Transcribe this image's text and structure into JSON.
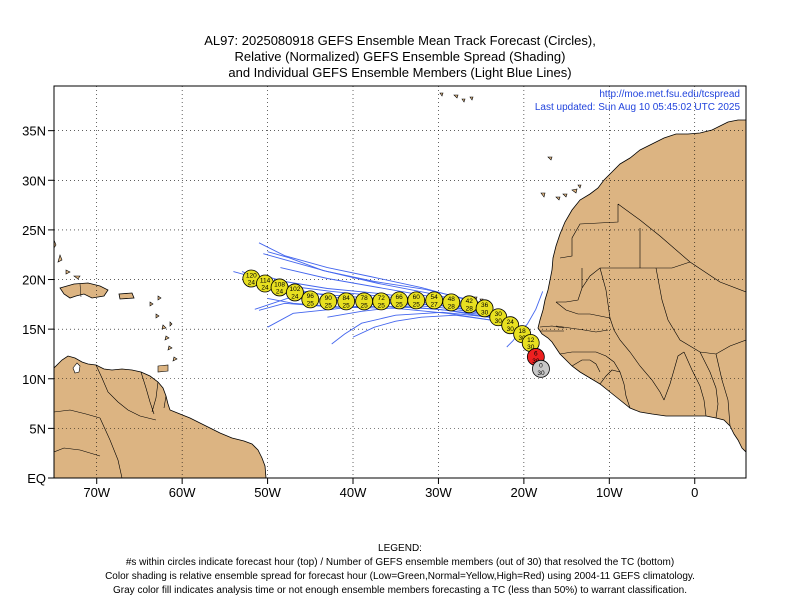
{
  "title": {
    "line1": "AL97: 2025080918 GEFS Ensemble Mean Track Forecast (Circles),",
    "line2": "Relative (Normalized) GEFS Ensemble Spread (Shading)",
    "line3": "and Individual GEFS Ensemble Members (Light Blue Lines)"
  },
  "info": {
    "url": "http://moe.met.fsu.edu/tcspread",
    "updated": "Last updated: Sun Aug 10 05:45:02 UTC 2025"
  },
  "legend": {
    "heading": "LEGEND:",
    "line1": "#s within circles indicate forecast hour (top) / Number of GEFS ensemble members (out of 30) that resolved the TC (bottom)",
    "line2": "Color shading is relative ensemble spread for forecast hour (Low=Green,Normal=Yellow,High=Red) using 2004-11 GEFS climatology.",
    "line3": "Gray color fill indicates analysis time or not enough ensemble members forecasting a TC (less than 50%) to warrant classification."
  },
  "colors": {
    "land": "#dcb482",
    "ocean": "#ffffff",
    "member_track": "#4466ee",
    "mean_normal": "#e8e020",
    "mean_high": "#ee2020",
    "analysis_gray": "#c8c8c8",
    "info_text": "#2244dd"
  },
  "chart_data": {
    "type": "scatter",
    "title": "AL97: 2025080918 GEFS Ensemble Mean Track Forecast (Circles), Relative (Normalized) GEFS Ensemble Spread (Shading) and Individual GEFS Ensemble Members (Light Blue Lines)",
    "xlim": [
      -75,
      6
    ],
    "ylim": [
      0,
      39.5
    ],
    "x_ticks": [
      {
        "value": -70,
        "label": "70W"
      },
      {
        "value": -60,
        "label": "60W"
      },
      {
        "value": -50,
        "label": "50W"
      },
      {
        "value": -40,
        "label": "40W"
      },
      {
        "value": -30,
        "label": "30W"
      },
      {
        "value": -20,
        "label": "20W"
      },
      {
        "value": -10,
        "label": "10W"
      },
      {
        "value": 0,
        "label": "0"
      }
    ],
    "y_ticks": [
      {
        "value": 0,
        "label": "EQ"
      },
      {
        "value": 5,
        "label": "5N"
      },
      {
        "value": 10,
        "label": "10N"
      },
      {
        "value": 15,
        "label": "15N"
      },
      {
        "value": 20,
        "label": "20N"
      },
      {
        "value": 25,
        "label": "25N"
      },
      {
        "value": 30,
        "label": "30N"
      },
      {
        "value": 35,
        "label": "35N"
      }
    ],
    "grid": true,
    "mean_track": [
      {
        "hour": 0,
        "members": 30,
        "lon": -18.0,
        "lat": 11.0,
        "spread": "analysis"
      },
      {
        "hour": 6,
        "members": 30,
        "lon": -18.6,
        "lat": 12.2,
        "spread": "high"
      },
      {
        "hour": 12,
        "members": 30,
        "lon": -19.2,
        "lat": 13.6,
        "spread": "normal"
      },
      {
        "hour": 18,
        "members": 30,
        "lon": -20.2,
        "lat": 14.5,
        "spread": "normal"
      },
      {
        "hour": 24,
        "members": 30,
        "lon": -21.6,
        "lat": 15.4,
        "spread": "normal"
      },
      {
        "hour": 30,
        "members": 30,
        "lon": -23.0,
        "lat": 16.2,
        "spread": "normal"
      },
      {
        "hour": 36,
        "members": 30,
        "lon": -24.6,
        "lat": 17.1,
        "spread": "normal"
      },
      {
        "hour": 42,
        "members": 28,
        "lon": -26.4,
        "lat": 17.5,
        "spread": "normal"
      },
      {
        "hour": 48,
        "members": 28,
        "lon": -28.5,
        "lat": 17.7,
        "spread": "normal"
      },
      {
        "hour": 54,
        "members": 27,
        "lon": -30.5,
        "lat": 17.9,
        "spread": "normal"
      },
      {
        "hour": 60,
        "members": 25,
        "lon": -32.6,
        "lat": 17.9,
        "spread": "normal"
      },
      {
        "hour": 66,
        "members": 25,
        "lon": -34.6,
        "lat": 17.9,
        "spread": "normal"
      },
      {
        "hour": 72,
        "members": 25,
        "lon": -36.7,
        "lat": 17.8,
        "spread": "normal"
      },
      {
        "hour": 78,
        "members": 25,
        "lon": -38.7,
        "lat": 17.8,
        "spread": "normal"
      },
      {
        "hour": 84,
        "members": 25,
        "lon": -40.8,
        "lat": 17.8,
        "spread": "normal"
      },
      {
        "hour": 90,
        "members": 25,
        "lon": -42.9,
        "lat": 17.8,
        "spread": "normal"
      },
      {
        "hour": 96,
        "members": 25,
        "lon": -45.0,
        "lat": 18.0,
        "spread": "normal"
      },
      {
        "hour": 102,
        "members": 24,
        "lon": -46.8,
        "lat": 18.7,
        "spread": "normal"
      },
      {
        "hour": 108,
        "members": 24,
        "lon": -48.6,
        "lat": 19.2,
        "spread": "normal"
      },
      {
        "hour": 114,
        "members": 24,
        "lon": -50.3,
        "lat": 19.6,
        "spread": "normal"
      },
      {
        "hour": 120,
        "members": 24,
        "lon": -51.9,
        "lat": 20.1,
        "spread": "normal"
      }
    ],
    "member_tracks": [
      [
        [
          -18.5,
          12.0
        ],
        [
          -20.5,
          14.8
        ],
        [
          -24,
          16.5
        ],
        [
          -30,
          17.2
        ],
        [
          -36,
          17.6
        ],
        [
          -42,
          18.2
        ],
        [
          -48,
          19.2
        ],
        [
          -53,
          20.8
        ]
      ],
      [
        [
          -18.5,
          12.0
        ],
        [
          -21,
          15.2
        ],
        [
          -25,
          17.2
        ],
        [
          -31,
          18.3
        ],
        [
          -37,
          19.2
        ],
        [
          -43,
          20.1
        ],
        [
          -48.5,
          21.2
        ]
      ],
      [
        [
          -18.5,
          12.0
        ],
        [
          -20,
          14.2
        ],
        [
          -23,
          15.8
        ],
        [
          -29,
          16.6
        ],
        [
          -35,
          17.1
        ],
        [
          -41,
          17.2
        ],
        [
          -47,
          17.6
        ],
        [
          -50,
          18.1
        ]
      ],
      [
        [
          -18.5,
          12.0
        ],
        [
          -21.5,
          15.5
        ],
        [
          -26,
          17.8
        ],
        [
          -32,
          19.2
        ],
        [
          -38,
          20.3
        ],
        [
          -43,
          21.2
        ],
        [
          -48,
          22.4
        ],
        [
          -51,
          23.7
        ]
      ],
      [
        [
          -18.5,
          12.0
        ],
        [
          -20.8,
          15.0
        ],
        [
          -24.5,
          16.8
        ],
        [
          -30,
          17.6
        ],
        [
          -36,
          18.0
        ],
        [
          -42,
          18.4
        ],
        [
          -48,
          18.9
        ],
        [
          -52,
          19.6
        ]
      ],
      [
        [
          -18.5,
          12.0
        ],
        [
          -20.2,
          14.5
        ],
        [
          -23.5,
          16.1
        ],
        [
          -29,
          16.9
        ],
        [
          -34,
          17.3
        ],
        [
          -39,
          16.8
        ],
        [
          -43,
          16.2
        ]
      ],
      [
        [
          -18.5,
          12.0
        ],
        [
          -20.5,
          14.6
        ],
        [
          -24,
          16.2
        ],
        [
          -29.5,
          16.7
        ],
        [
          -35,
          16.4
        ],
        [
          -39,
          15.6
        ],
        [
          -41,
          14.5
        ],
        [
          -42.5,
          13.5
        ]
      ],
      [
        [
          -18.5,
          12.0
        ],
        [
          -21,
          15.0
        ],
        [
          -25,
          17.0
        ],
        [
          -31,
          17.9
        ],
        [
          -37,
          18.6
        ],
        [
          -43,
          19.1
        ],
        [
          -48,
          19.8
        ],
        [
          -50.5,
          20.4
        ]
      ],
      [
        [
          -18.5,
          12.0
        ],
        [
          -20.7,
          14.9
        ],
        [
          -24.2,
          16.6
        ],
        [
          -30,
          17.4
        ],
        [
          -36,
          17.7
        ],
        [
          -42,
          17.9
        ],
        [
          -47,
          18.3
        ],
        [
          -51.5,
          17.0
        ]
      ],
      [
        [
          -18.5,
          12.0
        ],
        [
          -21.2,
          15.3
        ],
        [
          -25.5,
          17.4
        ],
        [
          -31,
          18.6
        ],
        [
          -37,
          19.6
        ],
        [
          -43,
          20.8
        ],
        [
          -48,
          22.0
        ],
        [
          -50.5,
          22.6
        ]
      ],
      [
        [
          -18.5,
          12.0
        ],
        [
          -20.6,
          14.7
        ],
        [
          -24.3,
          16.4
        ],
        [
          -30,
          17.0
        ],
        [
          -36,
          17.3
        ],
        [
          -42,
          17.2
        ],
        [
          -48,
          17.6
        ],
        [
          -51,
          16.9
        ]
      ],
      [
        [
          -18.5,
          12.0
        ],
        [
          -20.9,
          15.1
        ],
        [
          -24.8,
          16.9
        ],
        [
          -30.5,
          17.8
        ],
        [
          -36.5,
          18.3
        ],
        [
          -42.5,
          18.8
        ],
        [
          -48,
          19.4
        ],
        [
          -54,
          20.8
        ]
      ],
      [
        [
          -18.5,
          12.0
        ],
        [
          -20.4,
          14.4
        ],
        [
          -23.8,
          15.9
        ],
        [
          -28,
          16.4
        ],
        [
          -32,
          16.2
        ],
        [
          -35,
          15.8
        ],
        [
          -37.5,
          15.2
        ],
        [
          -40,
          14.2
        ]
      ],
      [
        [
          -18.5,
          12.0
        ],
        [
          -20.6,
          14.8
        ],
        [
          -24.5,
          16.7
        ],
        [
          -30.5,
          17.5
        ],
        [
          -36.5,
          17.6
        ],
        [
          -42.5,
          17.0
        ],
        [
          -47,
          16.6
        ],
        [
          -50,
          15.2
        ]
      ],
      [
        [
          -18.5,
          12.0
        ],
        [
          -21.3,
          15.6
        ],
        [
          -25.5,
          17.8
        ],
        [
          -31.5,
          19.0
        ],
        [
          -37.5,
          19.8
        ],
        [
          -43.5,
          20.9
        ],
        [
          -47.5,
          22.2
        ],
        [
          -50,
          22.8
        ]
      ]
    ],
    "extra_lines": [
      [
        [
          -17.8,
          18.8
        ],
        [
          -18.6,
          17.0
        ],
        [
          -19.6,
          15.5
        ],
        [
          -20.6,
          14.6
        ],
        [
          -21.3,
          13.8
        ],
        [
          -22.0,
          13.2
        ]
      ]
    ]
  }
}
